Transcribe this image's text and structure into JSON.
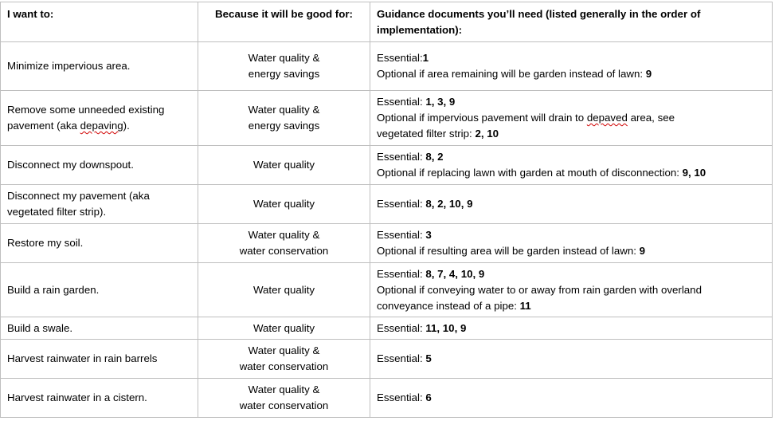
{
  "headers": {
    "col1": "I want to:",
    "col2": "Because it will be good for:",
    "col3": "Guidance documents you’ll need (listed generally in the order of implementation):"
  },
  "rows": [
    {
      "want": [
        "Minimize impervious area."
      ],
      "good_for": [
        "Water quality &",
        "energy savings"
      ],
      "essential_label": "Essential:",
      "essential_docs": "1",
      "optional_text": "Optional if area remaining will be garden instead of lawn: ",
      "optional_docs": "9"
    },
    {
      "want": [
        "Remove some unneeded existing",
        "pavement (aka ",
        "depaving",
        ")."
      ],
      "good_for": [
        "Water quality &",
        "energy savings"
      ],
      "essential_label": "Essential: ",
      "essential_docs": "1, 3, 9",
      "optional_text_a": "Optional if impervious pavement will drain to ",
      "optional_text_spell": "depaved",
      "optional_text_b": " area, see",
      "optional_text_c": "vegetated filter strip: ",
      "optional_docs": "2, 10"
    },
    {
      "want": [
        "Disconnect my downspout."
      ],
      "good_for": [
        "Water quality"
      ],
      "essential_label": "Essential: ",
      "essential_docs": "8, 2",
      "optional_text": "Optional if replacing lawn with garden at mouth of disconnection:  ",
      "optional_docs": "9, 10"
    },
    {
      "want": [
        "Disconnect my pavement (aka",
        "vegetated filter strip)."
      ],
      "good_for": [
        "Water quality"
      ],
      "essential_label": "Essential: ",
      "essential_docs": "8, 2, 10, 9"
    },
    {
      "want": [
        "Restore my soil."
      ],
      "good_for": [
        "Water quality &",
        "water conservation"
      ],
      "essential_label": "Essential: ",
      "essential_docs": "3",
      "optional_text": "Optional if resulting area will be garden instead of lawn: ",
      "optional_docs": "9"
    },
    {
      "want": [
        "Build a rain garden."
      ],
      "good_for": [
        "Water quality"
      ],
      "essential_label": "Essential: ",
      "essential_docs": "8, 7, 4, 10, 9",
      "optional_text_a": "Optional if conveying water to or away from rain garden with overland",
      "optional_text_c": "conveyance instead of a pipe: ",
      "optional_docs": "11"
    },
    {
      "want": [
        "Build a swale."
      ],
      "good_for": [
        "Water quality"
      ],
      "essential_label": "Essential: ",
      "essential_docs": "11, 10, 9"
    },
    {
      "want": [
        "Harvest rainwater in rain barrels"
      ],
      "good_for": [
        "Water quality &",
        "water conservation"
      ],
      "essential_label": "Essential: ",
      "essential_docs": "5"
    },
    {
      "want": [
        "Harvest rainwater in a cistern."
      ],
      "good_for": [
        "Water quality &",
        "water conservation"
      ],
      "essential_label": "Essential: ",
      "essential_docs": "6"
    }
  ]
}
